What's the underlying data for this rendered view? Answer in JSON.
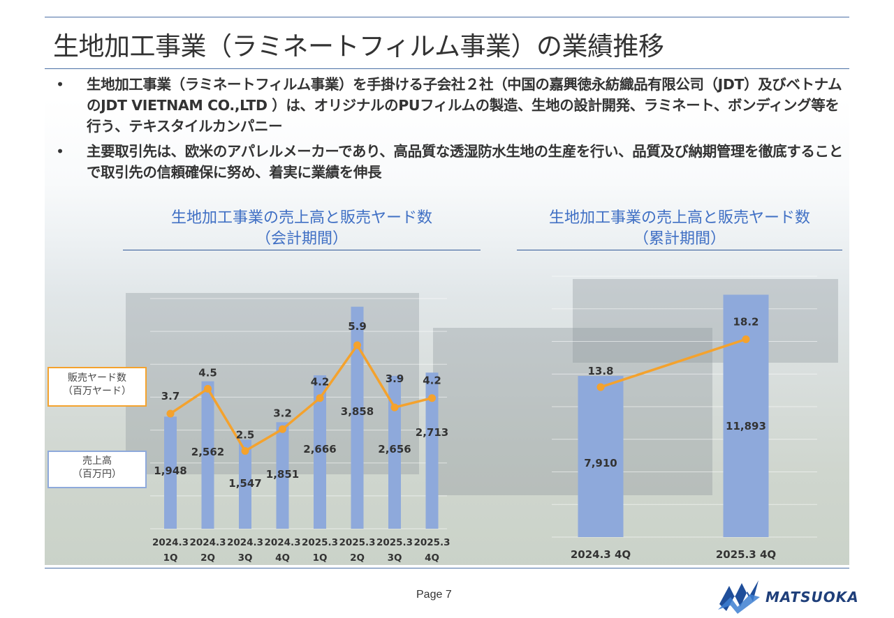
{
  "page": {
    "title": "生地加工事業（ラミネートフィルム事業）の業績推移",
    "bullets": [
      "生地加工事業（ラミネートフィルム事業）を手掛ける子会社２社（中国の嘉興徳永紡織品有限公司（JDT）及びベトナムのJDT VIETNAM CO.,LTD ）は、オリジナルのPUフィルムの製造、生地の設計開発、ラミネート、ボンディング等を行う、テキスタイルカンパニー",
      "主要取引先は、欧米のアパレルメーカーであり、高品質な透湿防水生地の生産を行い、品質及び納期管理を徹底することで取引先の信頼確保に努め、着実に業績を伸長"
    ],
    "bullet_mark": "•",
    "page_number": "Page 7",
    "logo_text": "MATSUOKA"
  },
  "legend": {
    "yard_line1": "販売ヤード数",
    "yard_line2": "（百万ヤード）",
    "sales_line1": "売上高",
    "sales_line2": "（百万円）"
  },
  "colors": {
    "bar": "#8ea9db",
    "line": "#f4a22d",
    "title_blue": "#3f6fc4",
    "rule": "#4a6fa5"
  },
  "chart_data": [
    {
      "type": "bar+line",
      "title_line1": "生地加工事業の売上高と販売ヤード数",
      "title_line2": "（会計期間）",
      "categories": [
        [
          "2024.3",
          "1Q"
        ],
        [
          "2024.3",
          "2Q"
        ],
        [
          "2024.3",
          "3Q"
        ],
        [
          "2024.3",
          "4Q"
        ],
        [
          "2025.3",
          "1Q"
        ],
        [
          "2025.3",
          "2Q"
        ],
        [
          "2025.3",
          "3Q"
        ],
        [
          "2025.3",
          "4Q"
        ]
      ],
      "series": [
        {
          "name": "売上高（百万円）",
          "kind": "bar",
          "values": [
            1948,
            2562,
            1547,
            1851,
            2666,
            3858,
            2656,
            2713
          ],
          "labels": [
            "1,948",
            "2,562",
            "1,547",
            "1,851",
            "2,666",
            "3,858",
            "2,656",
            "2,713"
          ]
        },
        {
          "name": "販売ヤード数（百万ヤード）",
          "kind": "line",
          "values": [
            3.7,
            4.5,
            2.5,
            3.2,
            4.2,
            5.9,
            3.9,
            4.2
          ],
          "labels": [
            "3.7",
            "4.5",
            "2.5",
            "3.2",
            "4.2",
            "5.9",
            "3.9",
            "4.2"
          ]
        }
      ],
      "bar_ylim": [
        0,
        4000
      ],
      "line_ylim": [
        0,
        7.4
      ]
    },
    {
      "type": "bar+line",
      "title_line1": "生地加工事業の売上高と販売ヤード数",
      "title_line2": "（累計期間）",
      "categories": [
        "2024.3 4Q",
        "2025.3 4Q"
      ],
      "series": [
        {
          "name": "売上高（百万円）",
          "kind": "bar",
          "values": [
            7910,
            11893
          ],
          "labels": [
            "7,910",
            "11,893"
          ]
        },
        {
          "name": "販売ヤード数（百万ヤード）",
          "kind": "line",
          "values": [
            13.8,
            18.2
          ],
          "labels": [
            "13.8",
            "18.2"
          ]
        }
      ],
      "bar_ylim": [
        0,
        12800
      ],
      "line_ylim": [
        0,
        24.0
      ]
    }
  ]
}
